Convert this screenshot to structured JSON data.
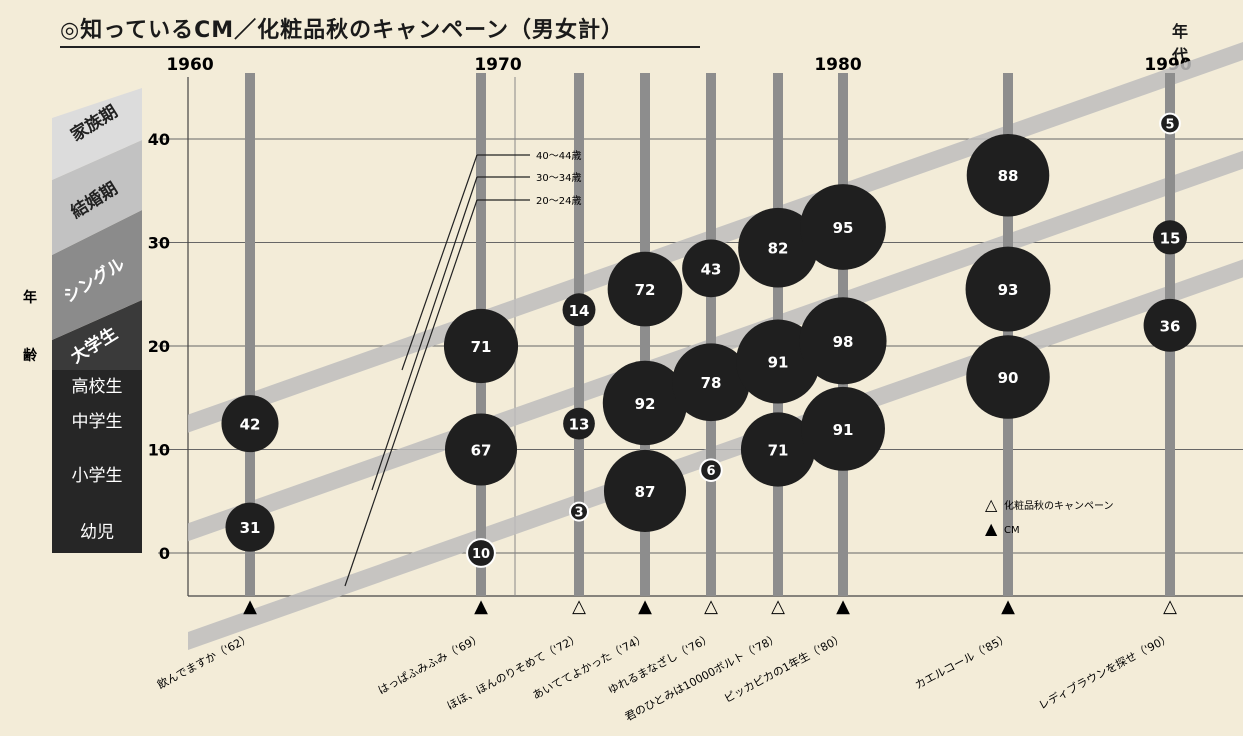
{
  "title": "◎知っているCM／化粧品秋のキャンペーン（男女計）",
  "corner_unit": "年 代",
  "chart_data": {
    "type": "bubble",
    "title": "◎知っているCM／化粧品秋のキャンペーン（男女計）",
    "x_axis": {
      "label": "年代",
      "range": [
        1960,
        1993
      ],
      "ticks": [
        1960,
        1970,
        1980,
        1990
      ]
    },
    "y_axis": {
      "label": "年齢",
      "range": [
        -4,
        44
      ],
      "ticks": [
        0,
        10,
        20,
        30,
        40
      ]
    },
    "life_stages": [
      "幼児",
      "小学生",
      "中学生",
      "高校生",
      "大学生",
      "シングル",
      "結婚期",
      "家族期"
    ],
    "cohort_bands": [
      {
        "label": "40～44歳",
        "age_in_1990": 42
      },
      {
        "label": "30～34歳",
        "age_in_1990": 32
      },
      {
        "label": "20～24歳",
        "age_in_1990": 22
      }
    ],
    "legend": {
      "position": "bottom-right",
      "items": [
        {
          "marker": "△",
          "label": "化粧品秋のキャンペーン"
        },
        {
          "marker": "▲",
          "label": "CM"
        }
      ]
    },
    "grid": true,
    "campaigns": [
      {
        "name": "飲んでますか",
        "year": 1962,
        "label": "飲んでますか（'62）",
        "kind": "CM",
        "marker": "▲",
        "values": [
          {
            "age": 2.5,
            "value": 31
          },
          {
            "age": 12.5,
            "value": 42
          }
        ]
      },
      {
        "name": "はっぱふみふみ",
        "year": 1969,
        "label": "はっぱふみふみ（'69）",
        "kind": "CM",
        "marker": "▲",
        "values": [
          {
            "age": 0,
            "value": 10
          },
          {
            "age": 10,
            "value": 67
          },
          {
            "age": 20,
            "value": 71
          }
        ]
      },
      {
        "name": "ほほ、ほんのりそめて",
        "year": 1972,
        "label": "ほほ、ほんのりそめて（'72）",
        "kind": "キャンペーン",
        "marker": "△",
        "values": [
          {
            "age": 4,
            "value": 3
          },
          {
            "age": 12.5,
            "value": 13
          },
          {
            "age": 23.5,
            "value": 14
          }
        ]
      },
      {
        "name": "あいててよかった",
        "year": 1974,
        "label": "あいててよかった（'74）",
        "kind": "CM",
        "marker": "▲",
        "values": [
          {
            "age": 6,
            "value": 87
          },
          {
            "age": 14.5,
            "value": 92
          },
          {
            "age": 25.5,
            "value": 72
          }
        ]
      },
      {
        "name": "ゆれるまなざし",
        "year": 1976,
        "label": "ゆれるまなざし（'76）",
        "kind": "キャンペーン",
        "marker": "△",
        "values": [
          {
            "age": 8,
            "value": 6
          },
          {
            "age": 16.5,
            "value": 78
          },
          {
            "age": 27.5,
            "value": 43
          }
        ]
      },
      {
        "name": "君のひとみは10000ボルト",
        "year": 1978,
        "label": "君のひとみは10000ボルト（'78）",
        "kind": "キャンペーン",
        "marker": "△",
        "values": [
          {
            "age": 10,
            "value": 71
          },
          {
            "age": 18.5,
            "value": 91
          },
          {
            "age": 29.5,
            "value": 82
          }
        ]
      },
      {
        "name": "ピッカピカの1年生",
        "year": 1980,
        "label": "ピッカピカの1年生（'80）",
        "kind": "CM",
        "marker": "▲",
        "values": [
          {
            "age": 12,
            "value": 91
          },
          {
            "age": 20.5,
            "value": 98
          },
          {
            "age": 31.5,
            "value": 95
          }
        ]
      },
      {
        "name": "カエルコール",
        "year": 1985,
        "label": "カエルコール（'85）",
        "kind": "CM",
        "marker": "▲",
        "values": [
          {
            "age": 17,
            "value": 90
          },
          {
            "age": 25.5,
            "value": 93
          },
          {
            "age": 36.5,
            "value": 88
          }
        ]
      },
      {
        "name": "レディブラウンを探せ",
        "year": 1990,
        "label": "レディブラウンを探せ（'90）",
        "kind": "キャンペーン",
        "marker": "△",
        "values": [
          {
            "age": 22,
            "value": 36
          },
          {
            "age": 30.5,
            "value": 15
          },
          {
            "age": 41.5,
            "value": 5
          }
        ]
      }
    ]
  }
}
